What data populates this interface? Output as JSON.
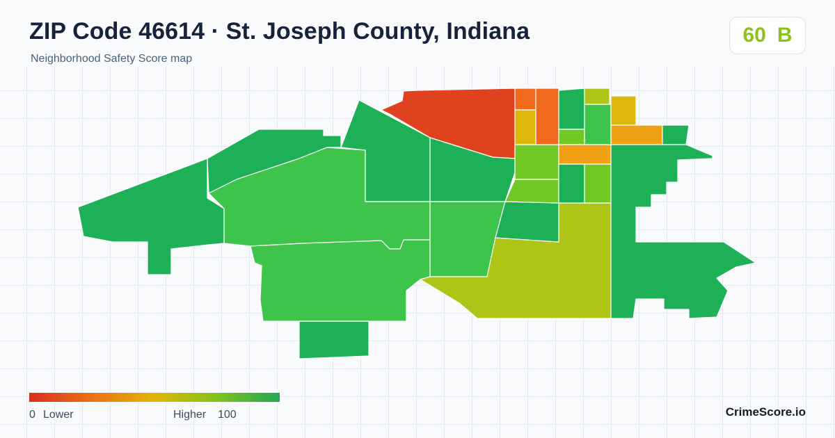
{
  "header": {
    "title": "ZIP Code 46614 · St. Joseph County, Indiana",
    "subtitle": "Neighborhood Safety Score map"
  },
  "score": {
    "value": "60",
    "grade": "B",
    "color": "#8cc21a"
  },
  "legend": {
    "min": "0",
    "low_label": "Lower",
    "high_label": "Higher",
    "max": "100",
    "colors": [
      "#d7301f",
      "#ec7014",
      "#e3b505",
      "#7fc31c",
      "#1ea854"
    ]
  },
  "brand": "CrimeScore.io",
  "map": {
    "type": "choropleth",
    "description_scale": "Neighborhood Safety Score 0-100",
    "colors": {
      "very_low": "#e0421f",
      "low": "#ef6a1c",
      "mid_low": "#f0a115",
      "mid": "#ddb70e",
      "mid_high": "#aec417",
      "high": "#70c924",
      "higher": "#3ec44a",
      "highest": "#1eb057"
    }
  }
}
